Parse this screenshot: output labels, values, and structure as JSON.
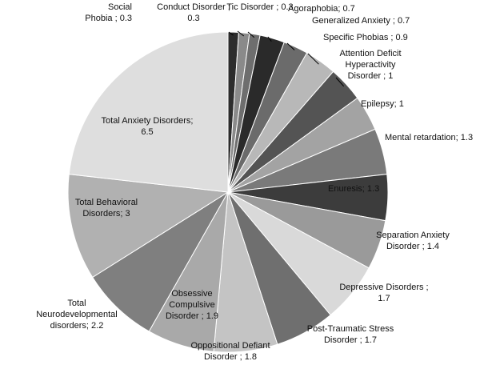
{
  "chart_data": {
    "type": "pie",
    "title": "",
    "label_separator": " ; ",
    "slices": [
      {
        "name": "Social Phobia",
        "value": 0.3,
        "label_lines": [
          "Social",
          "Phobia ; 0.3"
        ],
        "color": "#2d2d2d"
      },
      {
        "name": "Conduct Disorder",
        "value": 0.3,
        "label_lines": [
          "Conduct Disorder ;",
          "0.3"
        ],
        "color": "#8a8a8a"
      },
      {
        "name": "Tic Disorder",
        "value": 0.3,
        "label_lines": [
          "Tic Disorder ; 0.3"
        ],
        "color": "#6e6e6e"
      },
      {
        "name": "Agoraphobia",
        "value": 0.7,
        "label_lines": [
          "Agoraphobia; 0.7"
        ],
        "color": "#2a2a2a"
      },
      {
        "name": "Generalized Anxiety",
        "value": 0.7,
        "label_lines": [
          "Generalized Anxiety ; 0.7"
        ],
        "color": "#6b6b6b"
      },
      {
        "name": "Specific Phobias",
        "value": 0.9,
        "label_lines": [
          "Specific Phobias ; 0.9"
        ],
        "color": "#b8b8b8"
      },
      {
        "name": "Attention Deficit Hyperactivity Disorder",
        "value": 1,
        "label_lines": [
          "Attention Deficit",
          "Hyperactivity",
          "Disorder ; 1"
        ],
        "color": "#545454"
      },
      {
        "name": "Epilepsy",
        "value": 1,
        "label_lines": [
          "Epilepsy; 1"
        ],
        "color": "#a3a3a3"
      },
      {
        "name": "Mental retardation",
        "value": 1.3,
        "label_lines": [
          "Mental retardation; 1.3"
        ],
        "color": "#7a7a7a"
      },
      {
        "name": "Enuresis",
        "value": 1.3,
        "label_lines": [
          "Enuresis; 1.3"
        ],
        "color": "#3c3c3c"
      },
      {
        "name": "Separation Anxiety Disorder",
        "value": 1.4,
        "label_lines": [
          "Separation Anxiety",
          "Disorder ; 1.4"
        ],
        "color": "#9a9a9a"
      },
      {
        "name": "Depressive Disorders",
        "value": 1.7,
        "label_lines": [
          "Depressive Disorders ;",
          "1.7"
        ],
        "color": "#d9d9d9"
      },
      {
        "name": "Post-Traumatic Stress Disorder",
        "value": 1.7,
        "label_lines": [
          "Post-Traumatic Stress",
          "Disorder ; 1.7"
        ],
        "color": "#6f6f6f"
      },
      {
        "name": "Oppositional Defiant Disorder",
        "value": 1.8,
        "label_lines": [
          "Oppositional Defiant",
          "Disorder ; 1.8"
        ],
        "color": "#c4c4c4"
      },
      {
        "name": "Obsessive Compulsive Disorder",
        "value": 1.9,
        "label_lines": [
          "Obsessive",
          "Compulsive",
          "Disorder ; 1.9"
        ],
        "color": "#a9a9a9"
      },
      {
        "name": "Total Neurodevelopmental disorders",
        "value": 2.2,
        "label_lines": [
          "Total",
          "Neurodevelopmental",
          "disorders; 2.2"
        ],
        "color": "#7f7f7f"
      },
      {
        "name": "Total Behavioral Disorders",
        "value": 3,
        "label_lines": [
          "Total Behavioral",
          "Disorders; 3"
        ],
        "color": "#b1b1b1"
      },
      {
        "name": "Total Anxiety Disorders",
        "value": 6.5,
        "label_lines": [
          "Total Anxiety Disorders;",
          "6.5"
        ],
        "color": "#dedede"
      }
    ],
    "legend": "none"
  }
}
